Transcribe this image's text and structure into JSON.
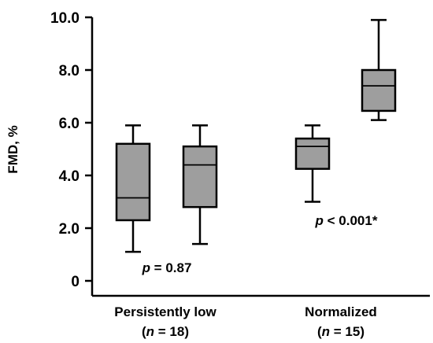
{
  "chart_data": {
    "type": "box",
    "ylabel": "FMD, %",
    "ylim": [
      0,
      10
    ],
    "yticks": [
      "0",
      "2.0",
      "4.0",
      "6.0",
      "8.0",
      "10.0"
    ],
    "grid": false,
    "groups": [
      {
        "line1": "Persistently low",
        "n_prefix": "(",
        "n_symbol": "n",
        "n_suffix": " = 18)"
      },
      {
        "line1": "Normalized",
        "n_prefix": "(",
        "n_symbol": "n",
        "n_suffix": " = 15)"
      }
    ],
    "boxes": [
      {
        "group": 0,
        "min": 1.1,
        "q1": 2.3,
        "median": 3.15,
        "q3": 5.2,
        "max": 5.9
      },
      {
        "group": 0,
        "min": 1.4,
        "q1": 2.8,
        "median": 4.4,
        "q3": 5.1,
        "max": 5.9
      },
      {
        "group": 1,
        "min": 3.0,
        "q1": 4.25,
        "median": 5.1,
        "q3": 5.4,
        "max": 5.9
      },
      {
        "group": 1,
        "min": 6.1,
        "q1": 6.45,
        "median": 7.4,
        "q3": 8.0,
        "max": 9.9
      }
    ],
    "annotations": [
      {
        "group": 0,
        "italic": "p",
        "text": " = 0.87"
      },
      {
        "group": 1,
        "italic": "p",
        "text": " < 0.001*"
      }
    ],
    "box_fill": "#9e9e9e",
    "line_color": "#000000"
  }
}
